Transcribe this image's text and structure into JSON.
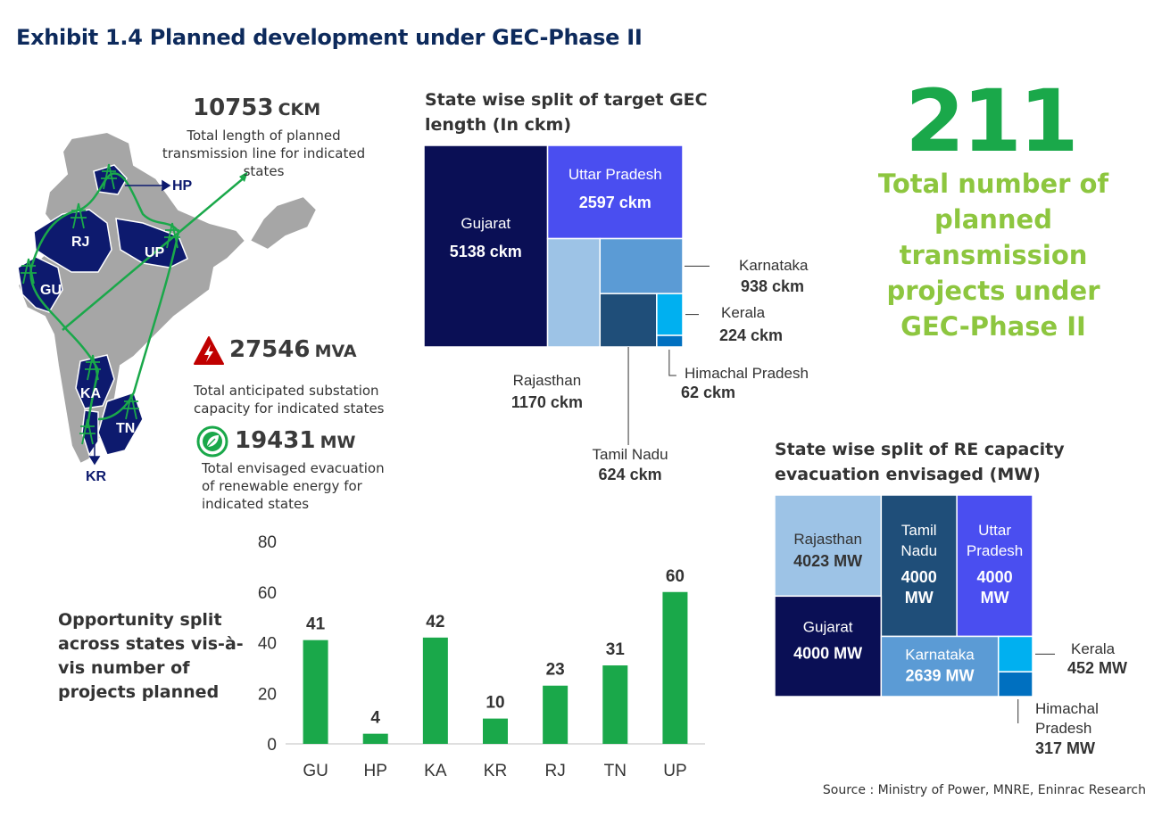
{
  "title": "Exhibit 1.4 Planned development under GEC-Phase II",
  "map": {
    "labels": [
      "HP",
      "RJ",
      "UP",
      "GU",
      "KA",
      "TN",
      "KR"
    ],
    "colors": {
      "state": "#0d1a6e",
      "other": "#a6a6a6",
      "line": "#1aa84a"
    }
  },
  "stats": {
    "ckm": {
      "value": "10753",
      "unit": "CKM",
      "desc": "Total length of planned transmission line for indicated states"
    },
    "mva": {
      "value": "27546",
      "unit": "MVA",
      "desc": "Total anticipated substation capacity for indicated states",
      "icon": "warning-icon"
    },
    "mw": {
      "value": "19431",
      "unit": "MW",
      "desc": "Total envisaged evacuation of renewable energy for indicated states",
      "icon": "leaf-icon"
    }
  },
  "headline": {
    "value": "211",
    "desc": "Total number of planned transmission projects under GEC-Phase II"
  },
  "opportunity_title": "Opportunity split across states vis-à-vis number of projects planned",
  "source": "Source : Ministry of Power, MNRE, Eninrac Research",
  "chart_data": [
    {
      "type": "treemap",
      "title": "State wise split of target GEC length (In ckm)",
      "items": [
        {
          "name": "Gujarat",
          "label": "5138 ckm",
          "value": 5138,
          "color": "#0a0f55"
        },
        {
          "name": "Uttar Pradesh",
          "label": "2597 ckm",
          "value": 2597,
          "color": "#4a4ef0"
        },
        {
          "name": "Rajasthan",
          "label": "1170 ckm",
          "value": 1170,
          "color": "#9dc3e6"
        },
        {
          "name": "Karnataka",
          "label": "938 ckm",
          "value": 938,
          "color": "#5b9bd5"
        },
        {
          "name": "Tamil Nadu",
          "label": "624 ckm",
          "value": 624,
          "color": "#1f4e79"
        },
        {
          "name": "Kerala",
          "label": "224 ckm",
          "value": 224,
          "color": "#00b0f0"
        },
        {
          "name": "Himachal Pradesh",
          "label": "62 ckm",
          "value": 62,
          "color": "#0070c0"
        }
      ]
    },
    {
      "type": "treemap",
      "title": "State wise split of RE capacity evacuation envisaged (MW)",
      "items": [
        {
          "name": "Rajasthan",
          "label": "4023 MW",
          "value": 4023,
          "color": "#9dc3e6"
        },
        {
          "name": "Tamil Nadu",
          "label": "4000 MW",
          "value": 4000,
          "color": "#1f4e79"
        },
        {
          "name": "Uttar Pradesh",
          "label": "4000 MW",
          "value": 4000,
          "color": "#4a4ef0"
        },
        {
          "name": "Gujarat",
          "label": "4000 MW",
          "value": 4000,
          "color": "#0a0f55"
        },
        {
          "name": "Karnataka",
          "label": "2639 MW",
          "value": 2639,
          "color": "#5b9bd5"
        },
        {
          "name": "Kerala",
          "label": "452 MW",
          "value": 452,
          "color": "#00b0f0"
        },
        {
          "name": "Himachal Pradesh",
          "label": "317 MW",
          "value": 317,
          "color": "#0070c0"
        }
      ]
    },
    {
      "type": "bar",
      "categories": [
        "GU",
        "HP",
        "KA",
        "KR",
        "RJ",
        "TN",
        "UP"
      ],
      "values": [
        41,
        4,
        42,
        10,
        23,
        31,
        60
      ],
      "ylim": [
        0,
        80
      ],
      "yticks": [
        0,
        20,
        40,
        60,
        80
      ],
      "color": "#1aa84a",
      "grid": false
    }
  ]
}
